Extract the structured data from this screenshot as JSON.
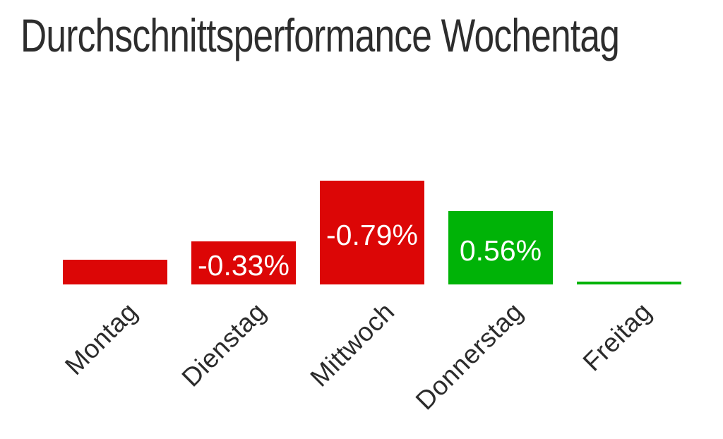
{
  "chart_data": {
    "type": "bar",
    "orientation": "column",
    "title": "Durchschnittsperformance Wochentag",
    "categories": [
      "Montag",
      "Dienstag",
      "Mittwoch",
      "Donnerstag",
      "Freitag"
    ],
    "series": [
      {
        "name": "Durchschnittsperformance",
        "values": [
          -0.19,
          -0.33,
          -0.79,
          0.56,
          0.02
        ],
        "data_labels": [
          "",
          "-0.33%",
          "-0.79%",
          "0.56%",
          ""
        ]
      }
    ],
    "unit": "%",
    "encoding_note": "bar height encodes absolute value; color encodes sign (red negative, green positive); Montag and Freitag bars carry no visible data label (values estimated from bar heights)",
    "value_axis_visible": false,
    "grid": false,
    "legend": false,
    "xlabel": "",
    "ylabel": "",
    "colors": {
      "negative": "#dc0606",
      "positive": "#00b307",
      "title_text": "#2d2d2d",
      "tick_text": "#2b2b2b",
      "data_label_text": "#ffffff",
      "background": "#ffffff"
    }
  }
}
